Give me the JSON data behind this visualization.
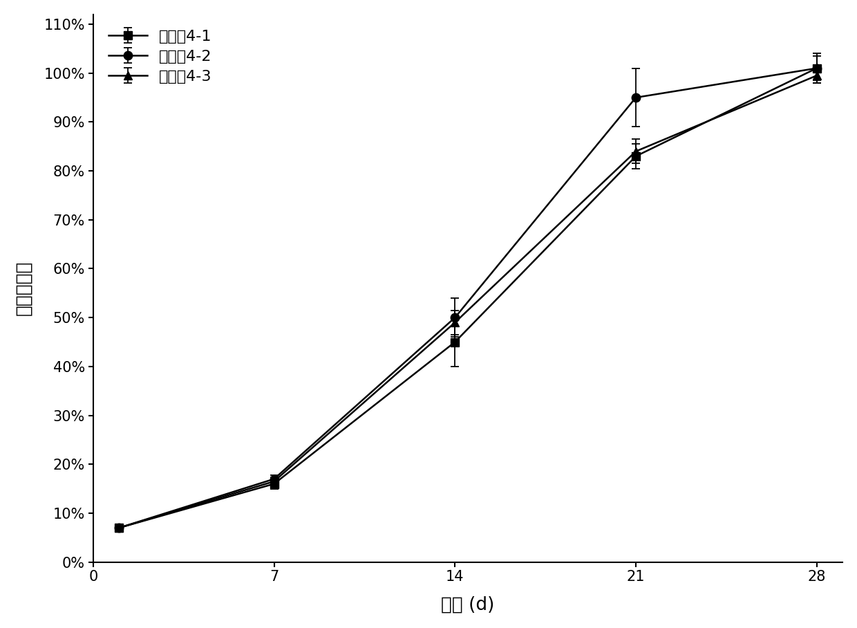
{
  "series": [
    {
      "label": "实施例4-1",
      "marker": "s",
      "x": [
        1,
        7,
        14,
        21,
        28
      ],
      "y": [
        0.07,
        0.16,
        0.45,
        0.83,
        1.01
      ],
      "yerr": [
        0.005,
        0.01,
        0.05,
        0.025,
        0.03
      ]
    },
    {
      "label": "实施例4-2",
      "marker": "o",
      "x": [
        1,
        7,
        14,
        21,
        28
      ],
      "y": [
        0.07,
        0.17,
        0.5,
        0.95,
        1.01
      ],
      "yerr": [
        0.005,
        0.008,
        0.04,
        0.06,
        0.025
      ]
    },
    {
      "label": "实施例4-3",
      "marker": "^",
      "x": [
        1,
        7,
        14,
        21,
        28
      ],
      "y": [
        0.07,
        0.165,
        0.49,
        0.84,
        0.995
      ],
      "yerr": [
        0.005,
        0.008,
        0.025,
        0.025,
        0.015
      ]
    }
  ],
  "xlabel": "时间 (d)",
  "ylabel": "累计释放率",
  "xlim": [
    0,
    29
  ],
  "ylim": [
    0,
    1.12
  ],
  "yticks": [
    0.0,
    0.1,
    0.2,
    0.3,
    0.4,
    0.5,
    0.6,
    0.7,
    0.8,
    0.9,
    1.0,
    1.1
  ],
  "ytick_labels": [
    "0%",
    "10%",
    "20%",
    "30%",
    "40%",
    "50%",
    "60%",
    "70%",
    "80%",
    "90%",
    "100%",
    "110%"
  ],
  "xticks": [
    0,
    7,
    14,
    21,
    28
  ],
  "line_color": "#000000",
  "marker_size": 8,
  "line_width": 1.8,
  "capsize": 4,
  "legend_loc": "upper left",
  "font_size": 16,
  "tick_font_size": 15,
  "label_font_size": 19
}
